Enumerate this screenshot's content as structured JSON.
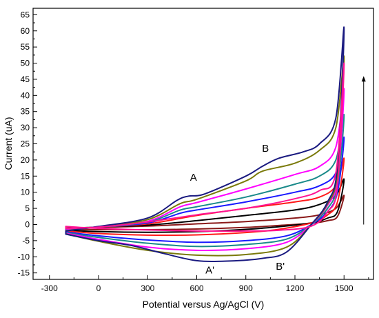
{
  "chart_data": {
    "type": "line",
    "chart_kind": "cyclic voltammogram",
    "xlabel": "Potential versus Ag/AgCl (V)",
    "ylabel": "Current (uA)",
    "xlim": [
      -400,
      1680
    ],
    "ylim": [
      -17,
      67
    ],
    "xticks": [
      -300,
      0,
      300,
      600,
      900,
      1200,
      1500
    ],
    "yticks": [
      -15,
      -10,
      -5,
      0,
      5,
      10,
      15,
      20,
      25,
      30,
      35,
      40,
      45,
      50,
      55,
      60,
      65
    ],
    "grid": false,
    "legend": "none",
    "annotations": [
      {
        "text": "A",
        "x": 580,
        "y": 13.6
      },
      {
        "text": "B",
        "x": 1020,
        "y": 22.5
      },
      {
        "text": "A'",
        "x": 680,
        "y": -15.2
      },
      {
        "text": "B'",
        "x": 1110,
        "y": -14.0
      }
    ],
    "arrow": {
      "direction": "up",
      "meaning": "increasing scan cycle",
      "x": 1620,
      "y_from": 0,
      "y_to": 46
    },
    "series": [
      {
        "color": "#8b1a1a",
        "endpoints": {
          "x_start": -200,
          "x_max": 1500,
          "y_max": 9
        },
        "forward": [
          [
            -200,
            -1.1
          ],
          [
            0,
            -0.9
          ],
          [
            300,
            -0.5
          ],
          [
            600,
            0.2
          ],
          [
            900,
            0.9
          ],
          [
            1200,
            2.0
          ],
          [
            1350,
            3.0
          ],
          [
            1450,
            5.0
          ],
          [
            1500,
            9.0
          ]
        ],
        "reverse": [
          [
            1500,
            9.0
          ],
          [
            1460,
            2.5
          ],
          [
            1400,
            1.2
          ],
          [
            1300,
            0.4
          ],
          [
            1100,
            -0.3
          ],
          [
            900,
            -0.9
          ],
          [
            600,
            -1.4
          ],
          [
            300,
            -1.6
          ],
          [
            0,
            -1.6
          ],
          [
            -200,
            -1.5
          ]
        ]
      },
      {
        "color": "#000000",
        "endpoints": {
          "x_start": -200,
          "x_max": 1500,
          "y_max": 14
        },
        "forward": [
          [
            -200,
            -1.2
          ],
          [
            0,
            -0.8
          ],
          [
            300,
            -0.2
          ],
          [
            600,
            1.2
          ],
          [
            900,
            2.8
          ],
          [
            1200,
            4.5
          ],
          [
            1350,
            6.2
          ],
          [
            1450,
            9.0
          ],
          [
            1500,
            14.0
          ]
        ],
        "reverse": [
          [
            1500,
            14.0
          ],
          [
            1460,
            4.0
          ],
          [
            1400,
            2.0
          ],
          [
            1300,
            0.5
          ],
          [
            1100,
            -0.7
          ],
          [
            900,
            -1.5
          ],
          [
            600,
            -2.2
          ],
          [
            300,
            -2.4
          ],
          [
            0,
            -2.2
          ],
          [
            -200,
            -1.8
          ]
        ]
      },
      {
        "color": "#ff1a1a",
        "endpoints": {
          "x_start": -200,
          "x_max": 1500,
          "y_max": 20.5
        },
        "forward": [
          [
            -200,
            -1.3
          ],
          [
            0,
            -0.8
          ],
          [
            300,
            0.2
          ],
          [
            600,
            2.8
          ],
          [
            900,
            5.0
          ],
          [
            1200,
            7.0
          ],
          [
            1350,
            8.5
          ],
          [
            1450,
            12.0
          ],
          [
            1500,
            20.5
          ]
        ],
        "reverse": [
          [
            1500,
            20.5
          ],
          [
            1460,
            7.0
          ],
          [
            1400,
            3.0
          ],
          [
            1300,
            0.5
          ],
          [
            1100,
            -1.5
          ],
          [
            900,
            -2.5
          ],
          [
            600,
            -3.2
          ],
          [
            300,
            -3.3
          ],
          [
            0,
            -2.8
          ],
          [
            -200,
            -2.0
          ]
        ]
      },
      {
        "color": "#1a1aff",
        "endpoints": {
          "x_start": -200,
          "x_max": 1500,
          "y_max": 27
        },
        "forward": [
          [
            -200,
            -1.5
          ],
          [
            0,
            -0.8
          ],
          [
            300,
            0.5
          ],
          [
            500,
            3.5
          ],
          [
            600,
            4.5
          ],
          [
            900,
            7.0
          ],
          [
            1200,
            10.0
          ],
          [
            1350,
            12.0
          ],
          [
            1450,
            16.0
          ],
          [
            1500,
            27.0
          ]
        ],
        "reverse": [
          [
            1500,
            27.0
          ],
          [
            1460,
            10.0
          ],
          [
            1400,
            4.0
          ],
          [
            1300,
            0.0
          ],
          [
            1150,
            -3.5
          ],
          [
            900,
            -5.0
          ],
          [
            600,
            -5.5
          ],
          [
            300,
            -4.8
          ],
          [
            0,
            -3.5
          ],
          [
            -200,
            -2.3
          ]
        ]
      },
      {
        "color": "#1a8a8a",
        "endpoints": {
          "x_start": -200,
          "x_max": 1500,
          "y_max": 34
        },
        "forward": [
          [
            -200,
            -1.6
          ],
          [
            0,
            -0.8
          ],
          [
            300,
            0.8
          ],
          [
            500,
            4.5
          ],
          [
            600,
            5.5
          ],
          [
            900,
            8.5
          ],
          [
            1200,
            12.5
          ],
          [
            1350,
            15.0
          ],
          [
            1450,
            20.0
          ],
          [
            1500,
            34.0
          ]
        ],
        "reverse": [
          [
            1500,
            34.0
          ],
          [
            1460,
            12.0
          ],
          [
            1400,
            5.0
          ],
          [
            1300,
            0.0
          ],
          [
            1150,
            -4.5
          ],
          [
            900,
            -6.2
          ],
          [
            600,
            -6.8
          ],
          [
            300,
            -5.8
          ],
          [
            0,
            -4.0
          ],
          [
            -200,
            -2.5
          ]
        ]
      },
      {
        "color": "#ff00ff",
        "endpoints": {
          "x_start": -200,
          "x_max": 1500,
          "y_max": 42
        },
        "forward": [
          [
            -200,
            -1.7
          ],
          [
            0,
            -0.7
          ],
          [
            300,
            1.0
          ],
          [
            500,
            5.5
          ],
          [
            600,
            6.8
          ],
          [
            900,
            11.0
          ],
          [
            1200,
            15.5
          ],
          [
            1350,
            18.0
          ],
          [
            1450,
            24.0
          ],
          [
            1500,
            42.0
          ]
        ],
        "reverse": [
          [
            1500,
            42.0
          ],
          [
            1460,
            14.0
          ],
          [
            1400,
            6.0
          ],
          [
            1300,
            0.0
          ],
          [
            1150,
            -5.5
          ],
          [
            900,
            -7.5
          ],
          [
            600,
            -8.0
          ],
          [
            300,
            -7.0
          ],
          [
            0,
            -4.6
          ],
          [
            -200,
            -2.7
          ]
        ]
      },
      {
        "color": "#7a7a0a",
        "endpoints": {
          "x_start": -200,
          "x_max": 1500,
          "y_max": 52
        },
        "forward": [
          [
            -200,
            -1.9
          ],
          [
            0,
            -0.7
          ],
          [
            300,
            1.5
          ],
          [
            500,
            6.5
          ],
          [
            600,
            7.8
          ],
          [
            900,
            13.5
          ],
          [
            1000,
            16.5
          ],
          [
            1200,
            19.0
          ],
          [
            1350,
            23.0
          ],
          [
            1450,
            30.0
          ],
          [
            1500,
            52.0
          ]
        ],
        "reverse": [
          [
            1500,
            52.0
          ],
          [
            1460,
            16.0
          ],
          [
            1400,
            6.5
          ],
          [
            1300,
            0.0
          ],
          [
            1150,
            -7.0
          ],
          [
            900,
            -9.3
          ],
          [
            600,
            -9.5
          ],
          [
            300,
            -8.0
          ],
          [
            0,
            -5.2
          ],
          [
            -200,
            -2.9
          ]
        ]
      },
      {
        "color": "#1a1a80",
        "endpoints": {
          "x_start": -200,
          "x_max": 1500,
          "y_max": 61
        },
        "forward": [
          [
            -200,
            -2.0
          ],
          [
            0,
            -0.6
          ],
          [
            300,
            2.0
          ],
          [
            480,
            7.5
          ],
          [
            550,
            8.8
          ],
          [
            650,
            9.5
          ],
          [
            900,
            15.0
          ],
          [
            1000,
            18.0
          ],
          [
            1100,
            20.5
          ],
          [
            1250,
            22.5
          ],
          [
            1350,
            25.0
          ],
          [
            1450,
            33.0
          ],
          [
            1500,
            61.0
          ]
        ],
        "reverse": [
          [
            1500,
            61.0
          ],
          [
            1460,
            18.0
          ],
          [
            1400,
            7.0
          ],
          [
            1300,
            0.0
          ],
          [
            1150,
            -8.5
          ],
          [
            1000,
            -10.5
          ],
          [
            800,
            -11.3
          ],
          [
            600,
            -11.2
          ],
          [
            400,
            -9.0
          ],
          [
            200,
            -6.5
          ],
          [
            0,
            -5.0
          ],
          [
            -200,
            -3.0
          ]
        ]
      },
      {
        "color": "#ff1493",
        "endpoints": {
          "x_start": -200,
          "x_max": 1500,
          "y_max": 50
        },
        "forward": [
          [
            -200,
            -1.2
          ],
          [
            0,
            -0.8
          ],
          [
            300,
            0.8
          ],
          [
            600,
            3.0
          ],
          [
            900,
            5.0
          ],
          [
            1200,
            8.0
          ],
          [
            1350,
            10.5
          ],
          [
            1450,
            16.0
          ],
          [
            1500,
            50.0
          ]
        ],
        "reverse": [
          [
            1500,
            50.0
          ],
          [
            1460,
            12.0
          ],
          [
            1400,
            4.0
          ],
          [
            1300,
            -0.5
          ],
          [
            1100,
            -1.8
          ],
          [
            900,
            -2.0
          ],
          [
            600,
            -2.0
          ],
          [
            300,
            -1.7
          ],
          [
            0,
            -1.2
          ],
          [
            -200,
            -0.6
          ]
        ]
      }
    ]
  }
}
